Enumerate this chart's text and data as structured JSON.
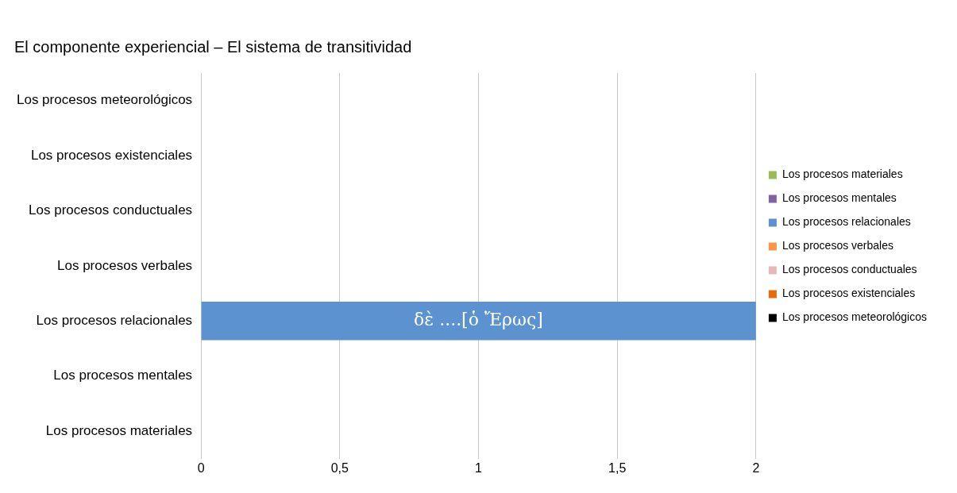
{
  "chart_data": {
    "type": "bar",
    "orientation": "horizontal",
    "title": "El componente experiencial – El sistema de transitividad",
    "categories": [
      "Los procesos meteorológicos",
      "Los procesos existenciales",
      "Los procesos conductuales",
      "Los procesos verbales",
      "Los procesos relacionales",
      "Los procesos mentales",
      "Los procesos materiales"
    ],
    "series": [
      {
        "name": "Los procesos materiales",
        "color": "#9bbb59",
        "values": [
          null,
          null,
          null,
          null,
          null,
          null,
          0
        ]
      },
      {
        "name": "Los procesos mentales",
        "color": "#8064a2",
        "values": [
          null,
          null,
          null,
          null,
          null,
          0,
          null
        ]
      },
      {
        "name": "Los procesos relacionales",
        "color": "#5b92cf",
        "values": [
          null,
          null,
          null,
          null,
          2,
          null,
          null
        ]
      },
      {
        "name": "Los procesos verbales",
        "color": "#f79646",
        "values": [
          null,
          null,
          null,
          0,
          null,
          null,
          null
        ]
      },
      {
        "name": "Los procesos conductuales",
        "color": "#e6b9b8",
        "values": [
          null,
          null,
          0,
          null,
          null,
          null,
          null
        ]
      },
      {
        "name": "Los procesos existenciales",
        "color": "#e46c0a",
        "values": [
          null,
          0,
          null,
          null,
          null,
          null,
          null
        ]
      },
      {
        "name": "Los procesos meteorológicos",
        "color": "#000000",
        "values": [
          0,
          null,
          null,
          null,
          null,
          null,
          null
        ]
      }
    ],
    "xlim": [
      0,
      2
    ],
    "xticks": [
      0,
      {
        "value": 0.5,
        "label": "0,5"
      },
      1,
      {
        "value": 1.5,
        "label": "1,5"
      },
      2
    ],
    "grid": "x",
    "legend": "right",
    "annotations": [
      {
        "text": "δὲ ....[ὁ Ἔρως]",
        "x": 1,
        "y": "Los procesos relacionales"
      }
    ]
  }
}
